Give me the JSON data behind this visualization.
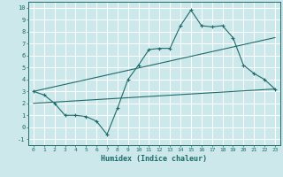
{
  "xlabel": "Humidex (Indice chaleur)",
  "bg_color": "#cce8ea",
  "grid_color": "#ffffff",
  "line_color": "#1e6b6b",
  "xlim": [
    -0.5,
    23.5
  ],
  "ylim": [
    -1.5,
    10.5
  ],
  "xticks": [
    0,
    1,
    2,
    3,
    4,
    5,
    6,
    7,
    8,
    9,
    10,
    11,
    12,
    13,
    14,
    15,
    16,
    17,
    18,
    19,
    20,
    21,
    22,
    23
  ],
  "yticks": [
    -1,
    0,
    1,
    2,
    3,
    4,
    5,
    6,
    7,
    8,
    9,
    10
  ],
  "line1_x": [
    0,
    1,
    2,
    3,
    4,
    5,
    6,
    7,
    8,
    9,
    10,
    11,
    12,
    13,
    14,
    15,
    16,
    17,
    18,
    19,
    20,
    21,
    22,
    23
  ],
  "line1_y": [
    3.0,
    2.7,
    2.0,
    1.0,
    1.0,
    0.9,
    0.5,
    -0.6,
    1.6,
    4.0,
    5.2,
    6.5,
    6.6,
    6.6,
    8.5,
    9.8,
    8.5,
    8.4,
    8.5,
    7.5,
    5.2,
    4.5,
    4.0,
    3.2
  ],
  "line2_x": [
    0,
    23
  ],
  "line2_y": [
    3.0,
    7.5
  ],
  "line3_x": [
    0,
    23
  ],
  "line3_y": [
    2.0,
    3.2
  ]
}
